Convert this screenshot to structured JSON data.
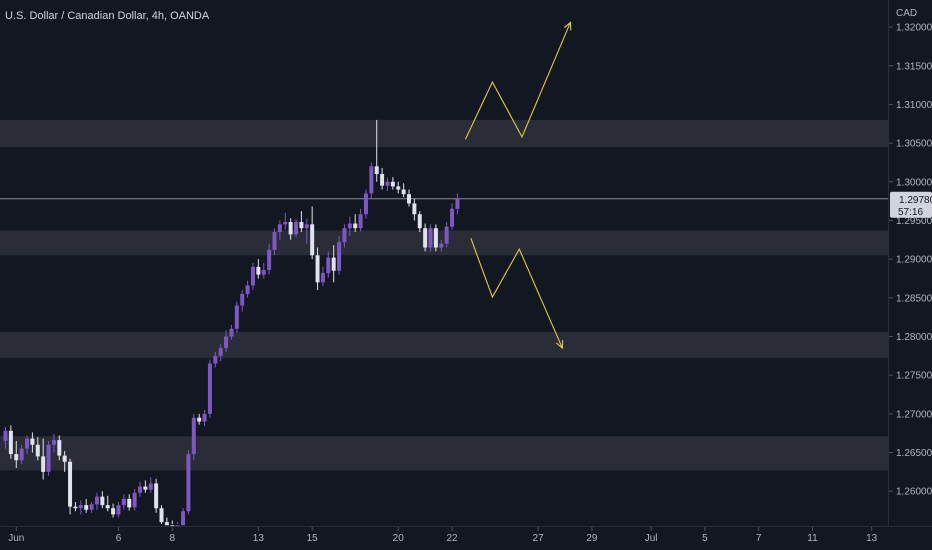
{
  "header": {
    "symbol_title": "U.S. Dollar / Canadian Dollar, 4h, OANDA"
  },
  "chart_data": {
    "type": "candlestick",
    "currency_label": "CAD",
    "ylim": [
      1.2555,
      1.3235
    ],
    "y_ticks": [
      {
        "value": 1.32,
        "label": "1.32000"
      },
      {
        "value": 1.315,
        "label": "1.31500"
      },
      {
        "value": 1.31,
        "label": "1.31000"
      },
      {
        "value": 1.305,
        "label": "1.30500"
      },
      {
        "value": 1.3,
        "label": "1.30000"
      },
      {
        "value": 1.295,
        "label": "1.29500"
      },
      {
        "value": 1.29,
        "label": "1.29000"
      },
      {
        "value": 1.285,
        "label": "1.28500"
      },
      {
        "value": 1.28,
        "label": "1.28000"
      },
      {
        "value": 1.275,
        "label": "1.27500"
      },
      {
        "value": 1.27,
        "label": "1.27000"
      },
      {
        "value": 1.265,
        "label": "1.26500"
      },
      {
        "value": 1.26,
        "label": "1.26000"
      }
    ],
    "x_ticks": [
      {
        "label": "Jun",
        "bar": 2
      },
      {
        "label": "6",
        "bar": 21
      },
      {
        "label": "8",
        "bar": 31
      },
      {
        "label": "13",
        "bar": 47
      },
      {
        "label": "15",
        "bar": 57
      },
      {
        "label": "20",
        "bar": 73
      },
      {
        "label": "22",
        "bar": 83
      },
      {
        "label": "27",
        "bar": 99
      },
      {
        "label": "29",
        "bar": 109
      },
      {
        "label": "Jul",
        "bar": 120
      },
      {
        "label": "5",
        "bar": 130
      },
      {
        "label": "7",
        "bar": 140
      },
      {
        "label": "11",
        "bar": 150
      },
      {
        "label": "13",
        "bar": 161
      }
    ],
    "current_price": {
      "value": 1.2978,
      "label": "1.29780",
      "countdown": "57:16"
    },
    "zones": [
      {
        "low": 1.3045,
        "high": 1.308
      },
      {
        "low": 1.2905,
        "high": 1.2937
      },
      {
        "low": 1.2772,
        "high": 1.2806
      },
      {
        "low": 1.2627,
        "high": 1.2671
      }
    ],
    "projections": [
      {
        "points": [
          [
            85.5,
            1.3055
          ],
          [
            90.5,
            1.3129
          ],
          [
            96,
            1.3058
          ],
          [
            105,
            1.3206
          ]
        ],
        "arrow": true
      },
      {
        "points": [
          [
            86.5,
            1.2927
          ],
          [
            90.5,
            1.2851
          ],
          [
            95.5,
            1.2913
          ],
          [
            103.5,
            1.2785
          ]
        ],
        "arrow": true
      }
    ],
    "candles": [
      [
        1.2665,
        1.2683,
        1.2655,
        1.2678
      ],
      [
        1.2678,
        1.2685,
        1.2642,
        1.2648
      ],
      [
        1.2648,
        1.2665,
        1.263,
        1.264
      ],
      [
        1.264,
        1.266,
        1.2635,
        1.2655
      ],
      [
        1.2655,
        1.2672,
        1.2648,
        1.2668
      ],
      [
        1.2668,
        1.2676,
        1.265,
        1.266
      ],
      [
        1.266,
        1.267,
        1.264,
        1.2645
      ],
      [
        1.2645,
        1.2668,
        1.2615,
        1.2625
      ],
      [
        1.2625,
        1.2665,
        1.262,
        1.266
      ],
      [
        1.266,
        1.2674,
        1.265,
        1.2666
      ],
      [
        1.2666,
        1.2672,
        1.264,
        1.2646
      ],
      [
        1.2646,
        1.2652,
        1.2625,
        1.2638
      ],
      [
        1.2638,
        1.2642,
        1.257,
        1.258
      ],
      [
        1.258,
        1.2586,
        1.2574,
        1.2578
      ],
      [
        1.2578,
        1.2588,
        1.257,
        1.2582
      ],
      [
        1.2582,
        1.259,
        1.2572,
        1.2576
      ],
      [
        1.2576,
        1.2586,
        1.2572,
        1.2583
      ],
      [
        1.2583,
        1.2598,
        1.2576,
        1.2593
      ],
      [
        1.2593,
        1.26,
        1.2578,
        1.2582
      ],
      [
        1.2582,
        1.2594,
        1.2574,
        1.2578
      ],
      [
        1.2578,
        1.2584,
        1.2566,
        1.257
      ],
      [
        1.257,
        1.2586,
        1.2566,
        1.2582
      ],
      [
        1.2582,
        1.2596,
        1.2576,
        1.259
      ],
      [
        1.259,
        1.2596,
        1.2575,
        1.2579
      ],
      [
        1.2579,
        1.2603,
        1.2575,
        1.2598
      ],
      [
        1.2598,
        1.2612,
        1.2593,
        1.2606
      ],
      [
        1.2606,
        1.2614,
        1.2598,
        1.2602
      ],
      [
        1.2602,
        1.2618,
        1.2598,
        1.261
      ],
      [
        1.261,
        1.2616,
        1.2572,
        1.2578
      ],
      [
        1.2578,
        1.2582,
        1.255,
        1.256
      ],
      [
        1.256,
        1.2566,
        1.255,
        1.2556
      ],
      [
        1.2556,
        1.2562,
        1.255,
        1.2554
      ],
      [
        1.2554,
        1.256,
        1.255,
        1.2556
      ],
      [
        1.2556,
        1.2578,
        1.2553,
        1.2574
      ],
      [
        1.2574,
        1.2653,
        1.257,
        1.2648
      ],
      [
        1.2648,
        1.27,
        1.264,
        1.2695
      ],
      [
        1.2695,
        1.27,
        1.2686,
        1.269
      ],
      [
        1.269,
        1.2705,
        1.2684,
        1.27
      ],
      [
        1.27,
        1.277,
        1.2695,
        1.2765
      ],
      [
        1.2765,
        1.278,
        1.276,
        1.2775
      ],
      [
        1.2775,
        1.279,
        1.2768,
        1.2785
      ],
      [
        1.2785,
        1.2808,
        1.278,
        1.28
      ],
      [
        1.28,
        1.2815,
        1.2796,
        1.281
      ],
      [
        1.281,
        1.2845,
        1.2805,
        1.284
      ],
      [
        1.284,
        1.286,
        1.2832,
        1.2855
      ],
      [
        1.2855,
        1.2872,
        1.285,
        1.2866
      ],
      [
        1.2866,
        1.2895,
        1.286,
        1.289
      ],
      [
        1.289,
        1.29,
        1.2875,
        1.288
      ],
      [
        1.288,
        1.2895,
        1.2875,
        1.2886
      ],
      [
        1.2886,
        1.292,
        1.288,
        1.2912
      ],
      [
        1.2912,
        1.294,
        1.2905,
        1.2935
      ],
      [
        1.2935,
        1.295,
        1.2925,
        1.2945
      ],
      [
        1.2945,
        1.296,
        1.2938,
        1.2948
      ],
      [
        1.2948,
        1.2953,
        1.2925,
        1.2932
      ],
      [
        1.2932,
        1.2952,
        1.2928,
        1.2948
      ],
      [
        1.2948,
        1.2962,
        1.2935,
        1.294
      ],
      [
        1.294,
        1.2952,
        1.292,
        1.2945
      ],
      [
        1.2945,
        1.2968,
        1.29,
        1.2905
      ],
      [
        1.2905,
        1.2915,
        1.286,
        1.287
      ],
      [
        1.287,
        1.289,
        1.2865,
        1.2882
      ],
      [
        1.2882,
        1.291,
        1.2876,
        1.2902
      ],
      [
        1.2902,
        1.2918,
        1.287,
        1.2885
      ],
      [
        1.2885,
        1.293,
        1.288,
        1.2922
      ],
      [
        1.2922,
        1.2945,
        1.2915,
        1.294
      ],
      [
        1.294,
        1.2955,
        1.293,
        1.2946
      ],
      [
        1.2946,
        1.2958,
        1.2935,
        1.294
      ],
      [
        1.294,
        1.2965,
        1.2936,
        1.2958
      ],
      [
        1.2958,
        1.299,
        1.2952,
        1.2985
      ],
      [
        1.2985,
        1.3025,
        1.2978,
        1.302
      ],
      [
        1.302,
        1.308,
        1.3,
        1.301
      ],
      [
        1.301,
        1.3018,
        1.299,
        1.2995
      ],
      [
        1.2995,
        1.3005,
        1.2988,
        1.3
      ],
      [
        1.3,
        1.3006,
        1.299,
        1.2994
      ],
      [
        1.2994,
        1.3,
        1.2985,
        1.299
      ],
      [
        1.299,
        1.2998,
        1.298,
        1.2984
      ],
      [
        1.2984,
        1.299,
        1.2968,
        1.2972
      ],
      [
        1.2972,
        1.2978,
        1.295,
        1.2958
      ],
      [
        1.2958,
        1.2962,
        1.2935,
        1.294
      ],
      [
        1.294,
        1.2946,
        1.291,
        1.2915
      ],
      [
        1.2915,
        1.2945,
        1.291,
        1.294
      ],
      [
        1.294,
        1.2945,
        1.291,
        1.2915
      ],
      [
        1.2915,
        1.2925,
        1.291,
        1.292
      ],
      [
        1.292,
        1.2948,
        1.2915,
        1.2942
      ],
      [
        1.2942,
        1.2972,
        1.2938,
        1.2965
      ],
      [
        1.2965,
        1.2985,
        1.2958,
        1.2978
      ]
    ]
  }
}
